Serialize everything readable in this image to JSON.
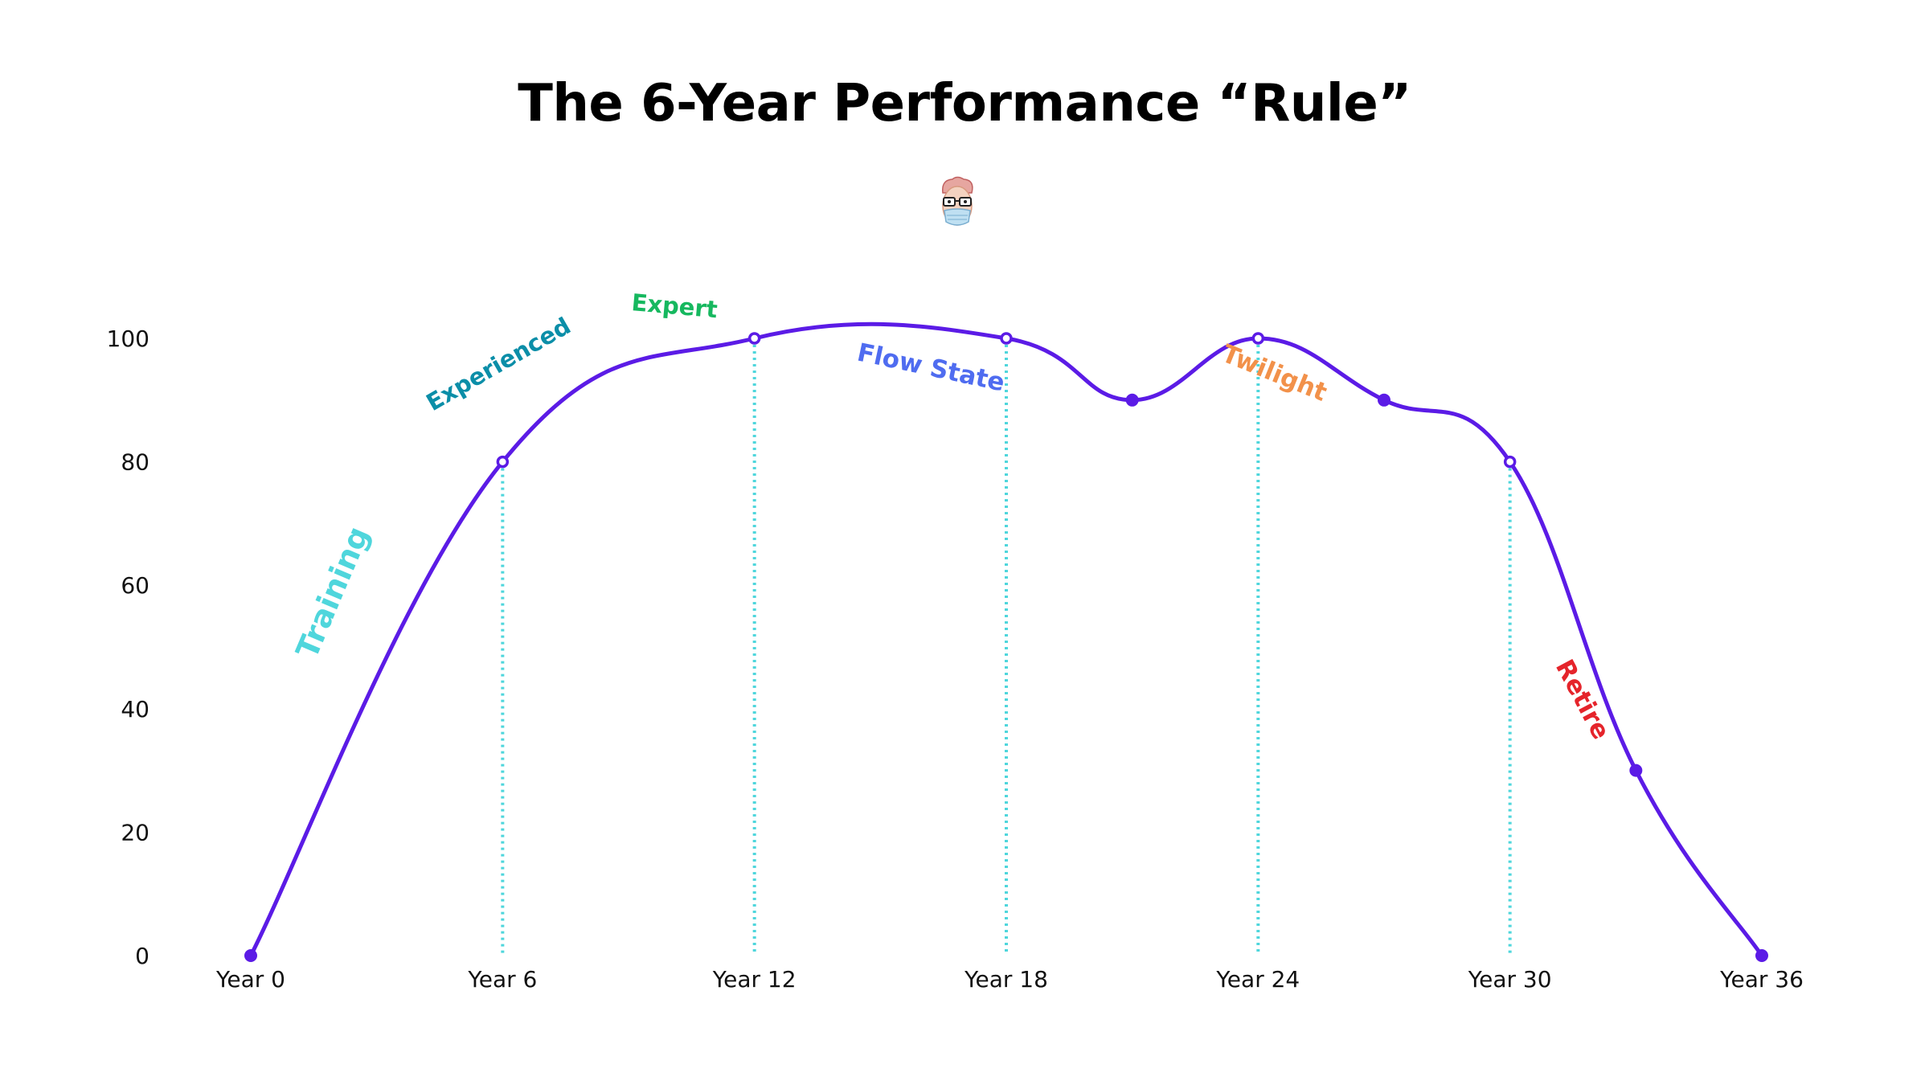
{
  "chart_data": {
    "type": "line",
    "title": "The 6-Year Performance “Rule”",
    "xlabel": "",
    "ylabel": "",
    "ylim": [
      0,
      100
    ],
    "grid": false,
    "legend": "none",
    "yticks": [
      "0",
      "20",
      "40",
      "60",
      "80",
      "100"
    ],
    "xtick_labels": [
      "Year 0",
      "Year 6",
      "Year 12",
      "Year 18",
      "Year 24",
      "Year 30",
      "Year 36"
    ],
    "line_color": "#5b1be6",
    "guide_color": "#4fd6dc",
    "series": [
      {
        "values": [
          0,
          80,
          100,
          100,
          90,
          100,
          90,
          80,
          30,
          0
        ]
      }
    ],
    "points_x": [
      0,
      6,
      12,
      18,
      21,
      24,
      27,
      30,
      33,
      36
    ],
    "hollow_points": [
      1,
      2,
      3,
      5,
      7
    ],
    "guides_at": [
      6,
      12,
      18,
      24,
      30
    ],
    "annotations": [
      {
        "text": "Training",
        "color": "#4fd6dc"
      },
      {
        "text": "Experienced",
        "color": "#0b8ea8"
      },
      {
        "text": "Expert",
        "color": "#16b85f"
      },
      {
        "text": "Flow State",
        "color": "#4f6cf0"
      },
      {
        "text": "Twilight",
        "color": "#f2914a"
      },
      {
        "text": "Retire",
        "color": "#e5242b"
      }
    ]
  }
}
